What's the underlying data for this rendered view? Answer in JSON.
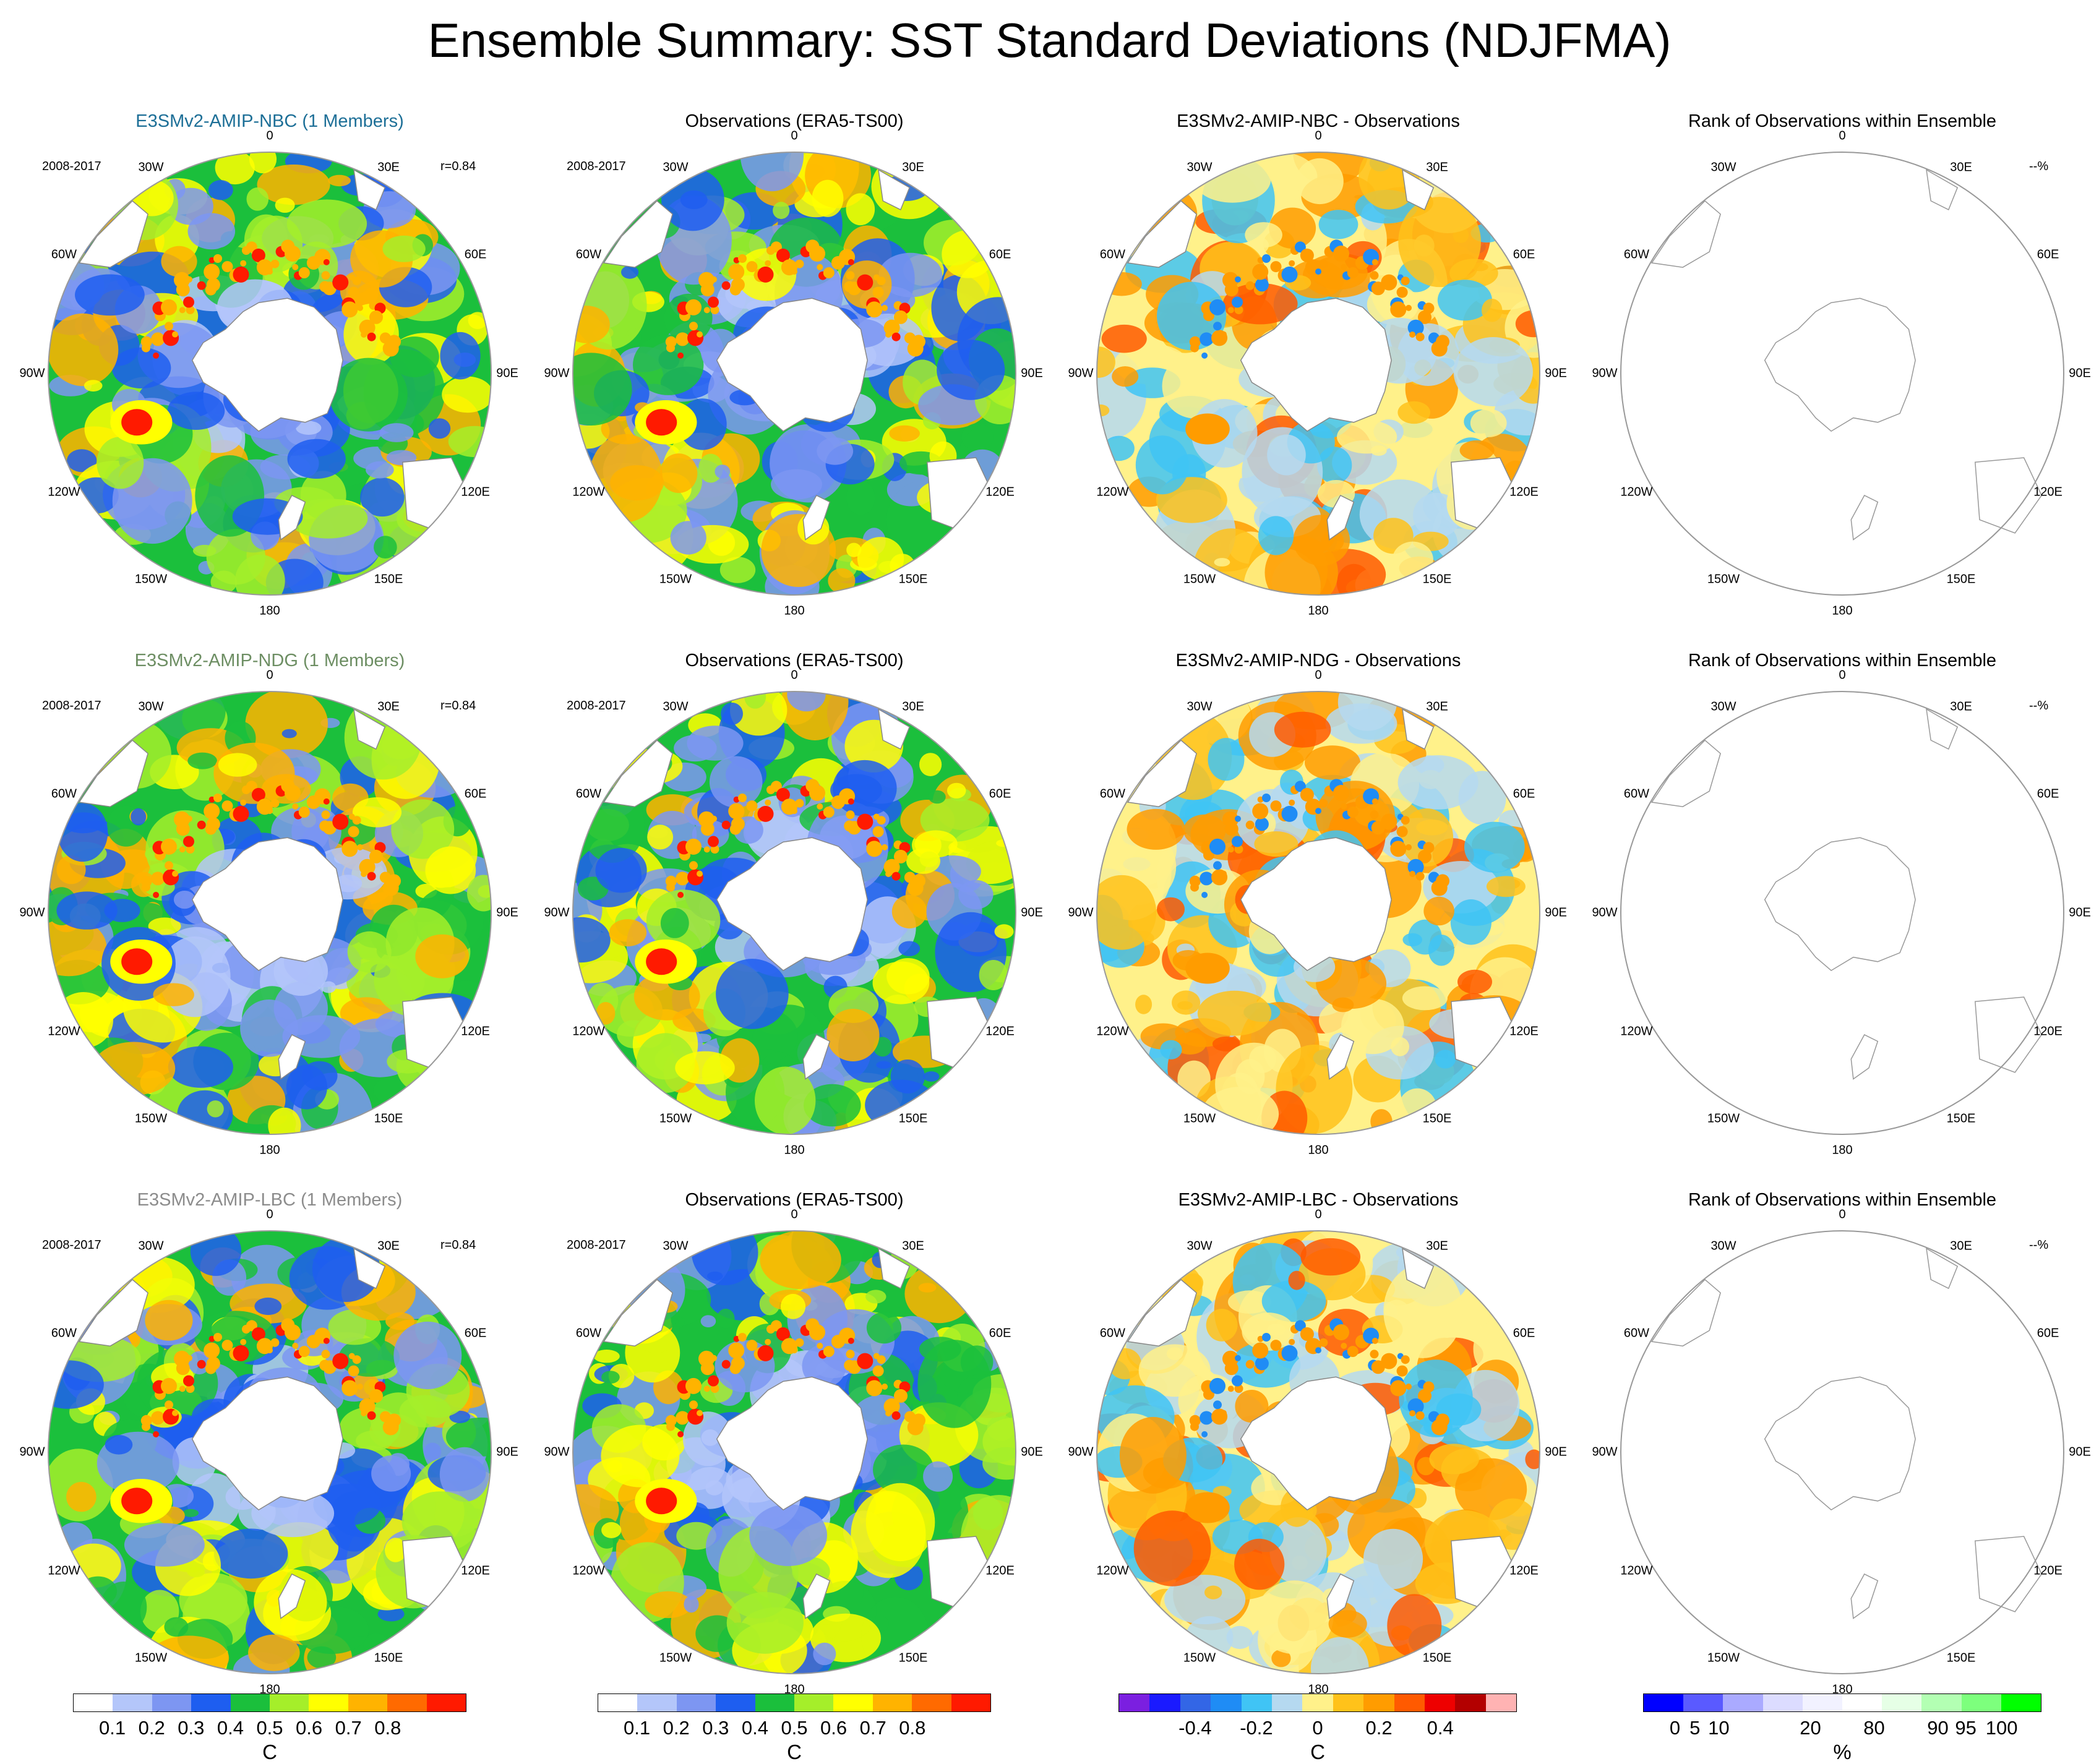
{
  "title": "Ensemble Summary: SST Standard Deviations (NDJFMA)",
  "period": "2008-2017",
  "corr": "r=0.84",
  "rank_corner": "--%",
  "lon_labels": [
    "0",
    "30E",
    "60E",
    "90E",
    "120E",
    "150E",
    "180",
    "150W",
    "120W",
    "90W",
    "60W",
    "30W"
  ],
  "rows": [
    {
      "model": "E3SMv2-AMIP-NBC (1 Members)",
      "model_color": "#1d6f97",
      "obs": "Observations (ERA5-TS00)",
      "diff": "E3SMv2-AMIP-NBC - Observations",
      "rank": "Rank of Observations within Ensemble"
    },
    {
      "model": "E3SMv2-AMIP-NDG (1 Members)",
      "model_color": "#6d8e63",
      "obs": "Observations (ERA5-TS00)",
      "diff": "E3SMv2-AMIP-NDG - Observations",
      "rank": "Rank of Observations within Ensemble"
    },
    {
      "model": "E3SMv2-AMIP-LBC (1 Members)",
      "model_color": "#8c8c8c",
      "obs": "Observations (ERA5-TS00)",
      "diff": "E3SMv2-AMIP-LBC - Observations",
      "rank": "Rank of Observations within Ensemble"
    }
  ],
  "colorbars": {
    "sst": {
      "colors": [
        "#ffffff",
        "#b4c6fa",
        "#7d96f2",
        "#1e5ef0",
        "#1bbf3c",
        "#a5ee2a",
        "#ffff00",
        "#ffb300",
        "#ff6a00",
        "#ff1a00"
      ],
      "ticks": [
        "0.1",
        "0.2",
        "0.3",
        "0.4",
        "0.5",
        "0.6",
        "0.7",
        "0.8"
      ],
      "unit": "C"
    },
    "diff": {
      "colors": [
        "#7b1fe0",
        "#1a1aff",
        "#3366e6",
        "#1f8cf5",
        "#40c4f5",
        "#b5d9f0",
        "#fff18a",
        "#ffc21a",
        "#ff9c00",
        "#ff5a00",
        "#ee0000",
        "#b30000",
        "#ffb3b3"
      ],
      "ticks": [
        "-0.4",
        "-0.2",
        "0",
        "0.2",
        "0.4"
      ],
      "unit": "C"
    },
    "rank": {
      "colors": [
        "#0000ff",
        "#5a5aff",
        "#aaaaff",
        "#dcdcff",
        "#f2f2ff",
        "#ffffff",
        "#e6ffe6",
        "#b3ffb3",
        "#7dff7d",
        "#00ff00"
      ],
      "ticks": [
        "0",
        "5",
        "10",
        "20",
        "80",
        "90",
        "95",
        "100"
      ],
      "unit": "%"
    }
  }
}
